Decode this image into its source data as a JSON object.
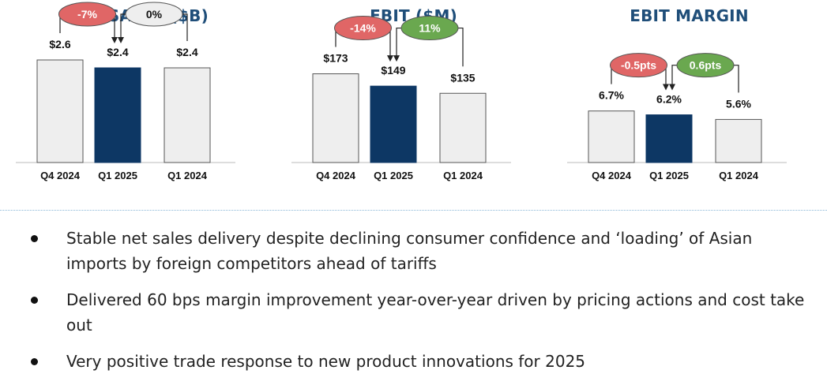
{
  "colors": {
    "current_bar": "#0d3764",
    "other_bar": "#eeeeee",
    "bar_border": "#555555",
    "negative_badge": "#e06666",
    "positive_badge": "#6aa84f",
    "neutral_badge": "#eeeeee",
    "title": "#1f4e79"
  },
  "chart_data": [
    {
      "type": "bar",
      "title": "NET SALES ($B)",
      "categories": [
        "Q4 2024",
        "Q1 2025",
        "Q1 2024"
      ],
      "values": [
        2.6,
        2.4,
        2.4
      ],
      "value_labels": [
        "$2.6",
        "$2.4",
        "$2.4"
      ],
      "highlight_index": 1,
      "ylim": [
        0,
        3.9
      ],
      "changes": [
        {
          "label": "-7%",
          "from": 0,
          "to": 1,
          "sentiment": "negative"
        },
        {
          "label": "0%",
          "from": 2,
          "to": 1,
          "sentiment": "neutral"
        }
      ]
    },
    {
      "type": "bar",
      "title": "EBIT ($M)",
      "categories": [
        "Q4 2024",
        "Q1 2025",
        "Q1 2024"
      ],
      "values": [
        173,
        149,
        135
      ],
      "value_labels": [
        "$173",
        "$149",
        "$135"
      ],
      "highlight_index": 1,
      "ylim": [
        0,
        300
      ],
      "changes": [
        {
          "label": "-14%",
          "from": 0,
          "to": 1,
          "sentiment": "negative"
        },
        {
          "label": "11%",
          "from": 2,
          "to": 1,
          "sentiment": "positive"
        }
      ]
    },
    {
      "type": "bar",
      "title": "EBIT MARGIN",
      "categories": [
        "Q4 2024",
        "Q1 2025",
        "Q1 2024"
      ],
      "values": [
        6.7,
        6.2,
        5.6
      ],
      "value_labels": [
        "6.7%",
        "6.2%",
        "5.6%"
      ],
      "highlight_index": 1,
      "ylim": [
        0,
        20
      ],
      "changes": [
        {
          "label": "-0.5pts",
          "from": 0,
          "to": 1,
          "sentiment": "negative"
        },
        {
          "label": "0.6pts",
          "from": 2,
          "to": 1,
          "sentiment": "positive"
        }
      ]
    }
  ],
  "bullets": [
    "Stable net sales delivery despite declining consumer confidence and ‘loading’ of Asian imports by foreign competitors ahead of tariffs",
    "Delivered 60 bps margin improvement year-over-year driven by pricing actions and cost take out",
    "Very positive trade response to new product innovations for 2025"
  ]
}
